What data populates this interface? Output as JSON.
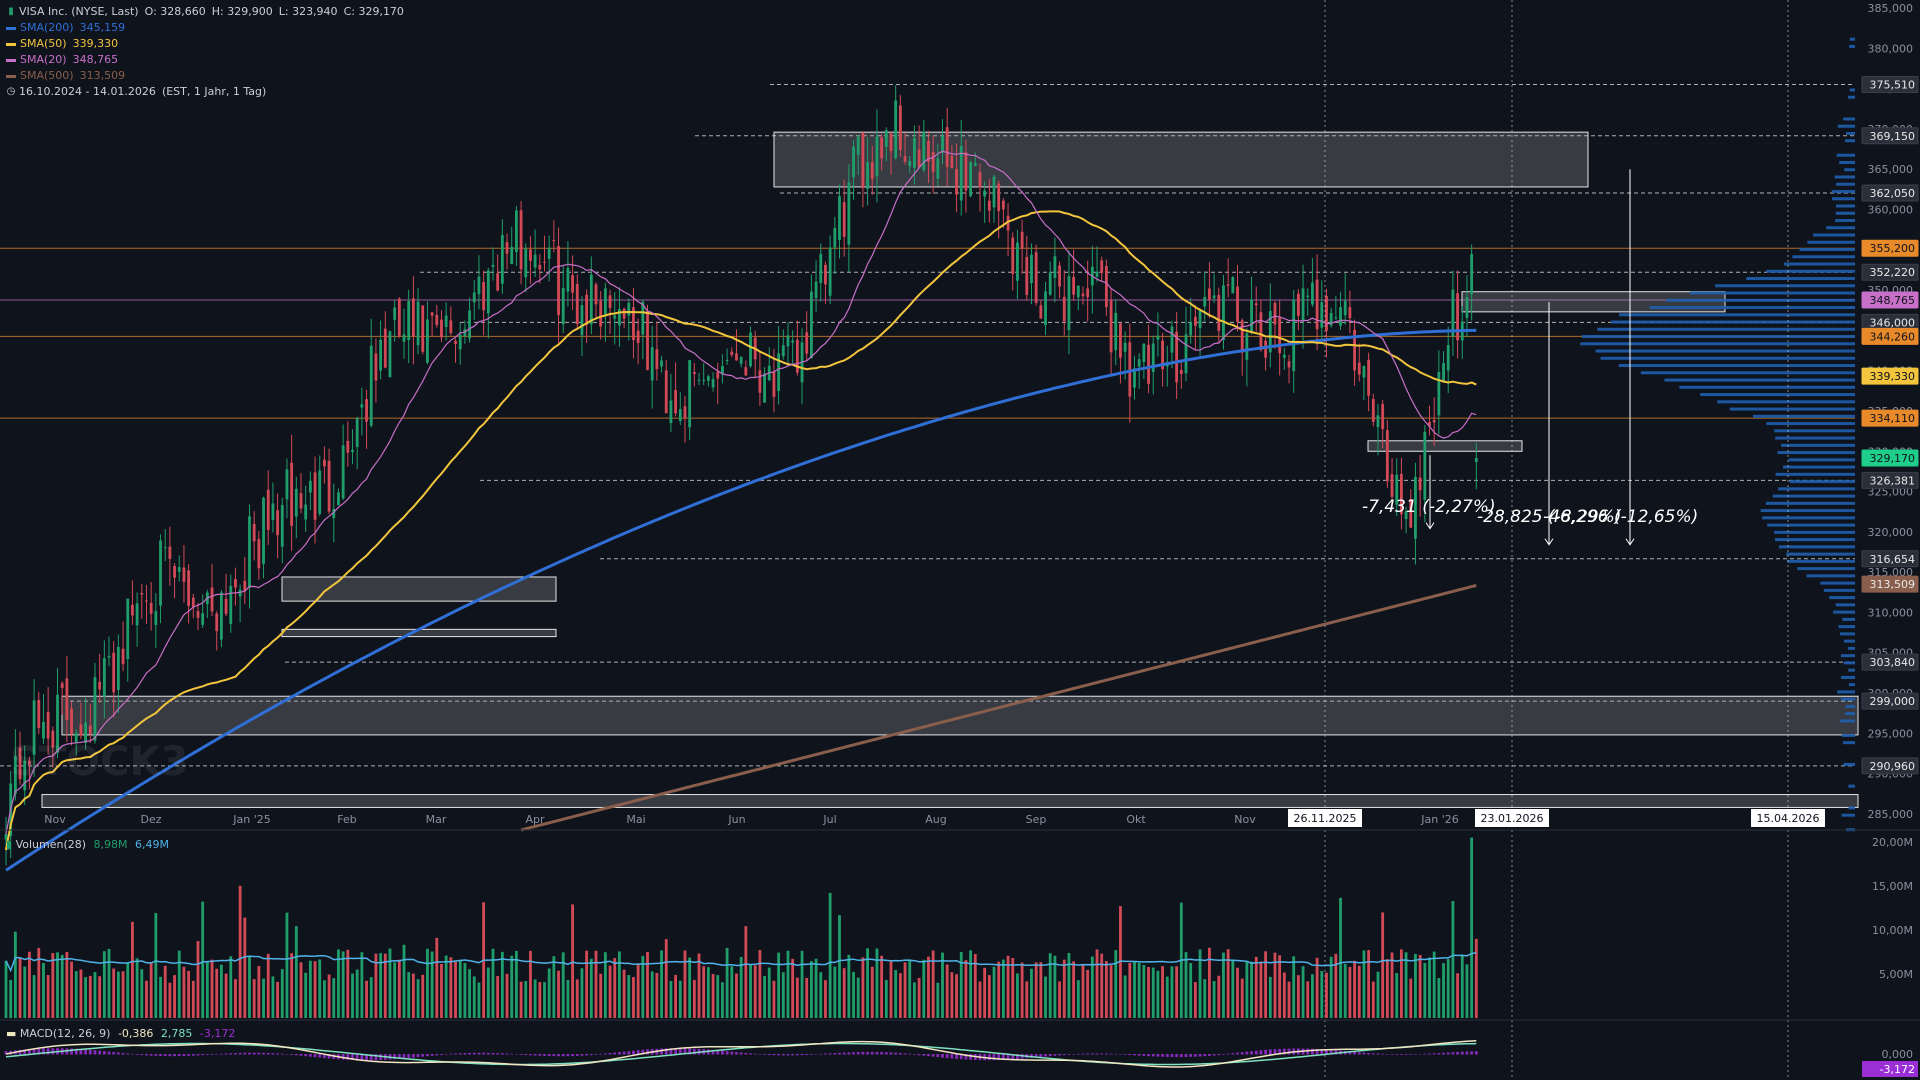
{
  "colors": {
    "background": "#0f131c",
    "up": "#1f9e6b",
    "down": "#d34a57",
    "sma200": "#2f6fd6",
    "sma50": "#f2c53d",
    "sma20": "#c86fc8",
    "sma500": "#8a5e4c",
    "volume_profile": "#1f5fae",
    "macd_line": "#f0e6c0",
    "macd_signal": "#7fe0c0",
    "macd_hist": "#9b2fd6",
    "volume_ma": "#4fb3e8"
  },
  "header": {
    "title": "VISA Inc. (NYSE, Last)",
    "open": "O: 328,660",
    "high": "H: 329,900",
    "low": "L: 323,940",
    "close": "C: 329,170",
    "sma200_label": "SMA(200)",
    "sma200_value": "345,159",
    "sma50_label": "SMA(50)",
    "sma50_value": "339,330",
    "sma20_label": "SMA(20)",
    "sma20_value": "348,765",
    "sma500_label": "SMA(500)",
    "sma500_value": "313,509",
    "period": "16.10.2024 - 14.01.2026",
    "period_note": "(EST, 1 Jahr, 1 Tag)"
  },
  "volume_legend": {
    "label": "Volumen(28)",
    "v1": "8,98M",
    "v2": "6,49M"
  },
  "macd_legend": {
    "label": "MACD(12, 26, 9)",
    "v1": "-0,386",
    "v2": "2,785",
    "v3": "-3,172"
  },
  "watermark": "STOCK3",
  "price_ticks": [
    "385,000",
    "380,000",
    "375,000",
    "370,000",
    "365,000",
    "360,000",
    "355,000",
    "350,000",
    "345,000",
    "340,000",
    "335,000",
    "330,000",
    "325,000",
    "320,000",
    "315,000",
    "310,000",
    "305,000",
    "300,000",
    "295,000",
    "290,000",
    "285,000"
  ],
  "volume_ticks": [
    "20,00M",
    "15,00M",
    "10,00M",
    "5,00M"
  ],
  "macd_ticks": [
    "0,000"
  ],
  "month_labels": [
    "Nov",
    "Dez",
    "Jan '25",
    "Feb",
    "Mar",
    "Apr",
    "Mai",
    "Jun",
    "Jul",
    "Aug",
    "Sep",
    "Okt",
    "Nov",
    "Jan '26"
  ],
  "date_markers": [
    "26.11.2025",
    "23.01.2026",
    "15.04.2026"
  ],
  "price_levels": [
    {
      "label": "375,510",
      "style": "plain"
    },
    {
      "label": "369,150",
      "style": "plain"
    },
    {
      "label": "362,050",
      "style": "plain"
    },
    {
      "label": "355,200",
      "style": "orange"
    },
    {
      "label": "352,220",
      "style": "plain"
    },
    {
      "label": "348,765",
      "style": "pink"
    },
    {
      "label": "346,000",
      "style": "plain"
    },
    {
      "label": "344,260",
      "style": "orange"
    },
    {
      "label": "339,330",
      "style": "yellow"
    },
    {
      "label": "334,110",
      "style": "orange"
    },
    {
      "label": "329,170",
      "style": "green"
    },
    {
      "label": "326,381",
      "style": "plain"
    },
    {
      "label": "316,654",
      "style": "plain"
    },
    {
      "label": "313,509",
      "style": "brown"
    },
    {
      "label": "303,840",
      "style": "plain"
    },
    {
      "label": "299,000",
      "style": "plain"
    },
    {
      "label": "290,960",
      "style": "plain"
    }
  ],
  "annotations": [
    "-7,431 (-2,27%)",
    "-28,825 (-8,29%)",
    "-46,296 (-12,65%)"
  ],
  "macd_value_badge": "-3,172",
  "chart_data": {
    "type": "candlestick",
    "title": "VISA Inc. (NYSE, Last)",
    "period": "16.10.2024 - 14.01.2026",
    "ylim": [
      283,
      386
    ],
    "last": {
      "open": 328.66,
      "high": 329.9,
      "low": 323.94,
      "close": 329.17
    },
    "monthly_close_path": [
      {
        "x": "Nov",
        "y": 287
      },
      {
        "x": "Dez",
        "y": 311
      },
      {
        "x": "Jan '25",
        "y": 317
      },
      {
        "x": "Feb",
        "y": 343
      },
      {
        "x": "Mar",
        "y": 356
      },
      {
        "x": "Apr",
        "y": 340
      },
      {
        "x": "Mai",
        "y": 340
      },
      {
        "x": "Jun",
        "y": 372
      },
      {
        "x": "Jul",
        "y": 357
      },
      {
        "x": "Aug",
        "y": 342
      },
      {
        "x": "Sep",
        "y": 346
      },
      {
        "x": "Okt",
        "y": 346
      },
      {
        "x": "Nov",
        "y": 324
      },
      {
        "x": "Jan '26",
        "y": 354
      }
    ],
    "series": [
      {
        "name": "SMA(200)",
        "value": 345.159
      },
      {
        "name": "SMA(50)",
        "value": 339.33
      },
      {
        "name": "SMA(20)",
        "value": 348.765
      },
      {
        "name": "SMA(500)",
        "value": 313.509
      }
    ],
    "volume": {
      "name": "Volumen(28)",
      "values": [
        "8,98M",
        "6,49M"
      ],
      "max": "20,00M"
    },
    "macd": {
      "name": "MACD(12, 26, 9)",
      "macd": -0.386,
      "signal": 2.785,
      "histogram": -3.172
    }
  }
}
